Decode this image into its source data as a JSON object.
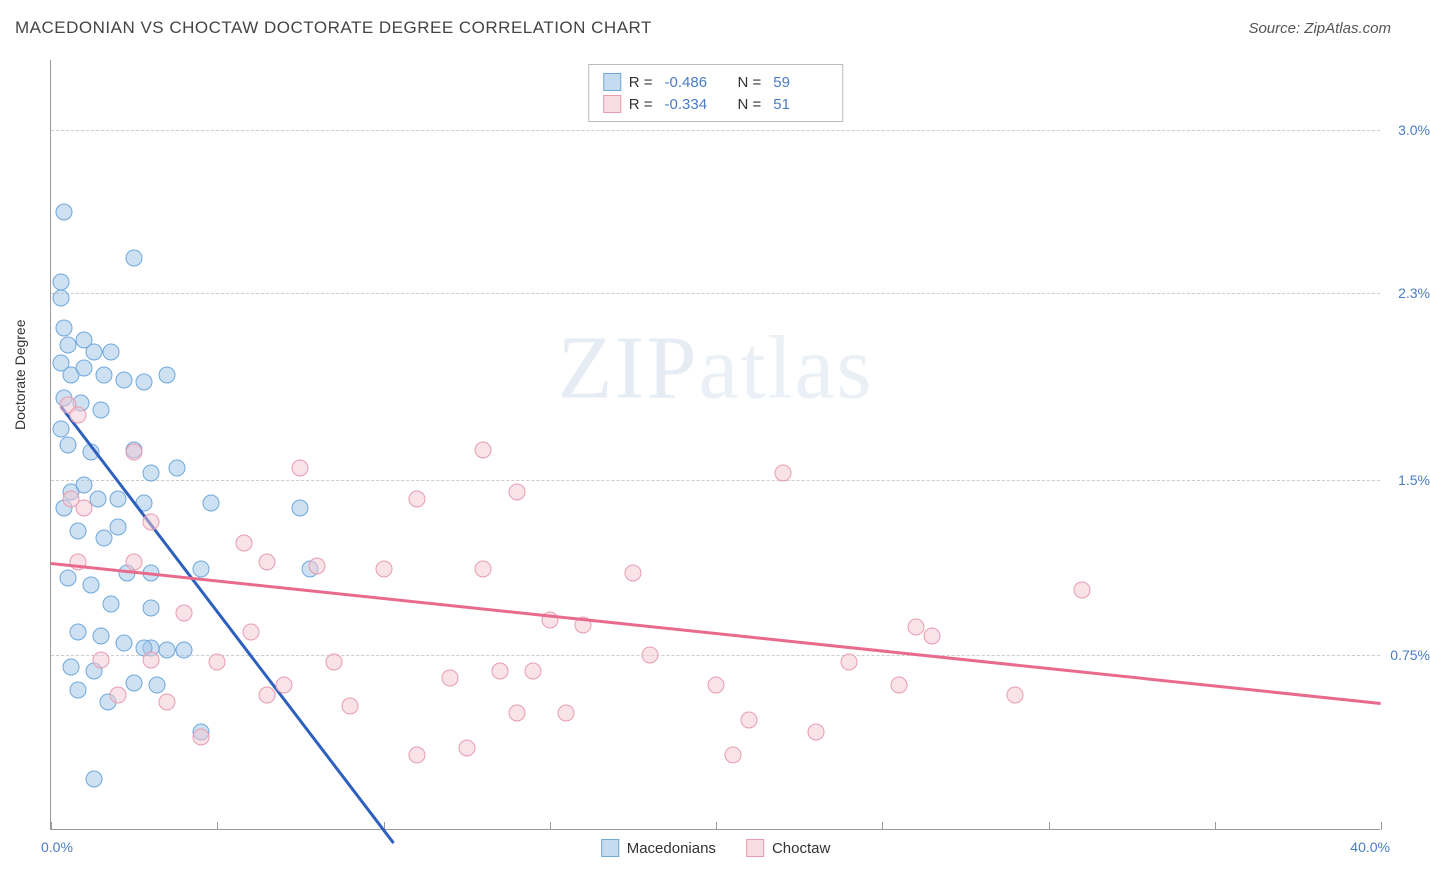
{
  "title": "MACEDONIAN VS CHOCTAW DOCTORATE DEGREE CORRELATION CHART",
  "source": "Source: ZipAtlas.com",
  "ylabel": "Doctorate Degree",
  "watermark": "ZIPatlas",
  "chart": {
    "type": "scatter",
    "xlim": [
      0,
      40
    ],
    "ylim": [
      0,
      3.3
    ],
    "x_min_label": "0.0%",
    "x_max_label": "40.0%",
    "x_ticks": [
      0,
      5,
      10,
      15,
      20,
      25,
      30,
      35,
      40
    ],
    "y_gridlines": [
      {
        "value": 0.75,
        "label": "0.75%"
      },
      {
        "value": 1.5,
        "label": "1.5%"
      },
      {
        "value": 2.3,
        "label": "2.3%"
      },
      {
        "value": 3.0,
        "label": "3.0%"
      }
    ],
    "series": [
      {
        "name": "Macedonians",
        "color_fill": "rgba(157,195,230,0.5)",
        "color_stroke": "#6fa8dc",
        "trend_color": "#2d5fbf",
        "R": "-0.486",
        "N": "59",
        "trend": {
          "x1": 0.3,
          "y1": 1.82,
          "x2": 10.3,
          "y2": -0.05
        },
        "points": [
          [
            0.4,
            2.65
          ],
          [
            2.5,
            2.45
          ],
          [
            0.3,
            2.35
          ],
          [
            0.3,
            2.28
          ],
          [
            0.4,
            2.15
          ],
          [
            0.5,
            2.08
          ],
          [
            1.0,
            2.1
          ],
          [
            1.3,
            2.05
          ],
          [
            1.8,
            2.05
          ],
          [
            0.3,
            2.0
          ],
          [
            0.6,
            1.95
          ],
          [
            1.0,
            1.98
          ],
          [
            1.6,
            1.95
          ],
          [
            2.2,
            1.93
          ],
          [
            2.8,
            1.92
          ],
          [
            3.5,
            1.95
          ],
          [
            0.4,
            1.85
          ],
          [
            0.9,
            1.83
          ],
          [
            1.5,
            1.8
          ],
          [
            0.3,
            1.72
          ],
          [
            0.5,
            1.65
          ],
          [
            1.2,
            1.62
          ],
          [
            2.5,
            1.63
          ],
          [
            3.0,
            1.53
          ],
          [
            3.8,
            1.55
          ],
          [
            0.6,
            1.45
          ],
          [
            1.4,
            1.42
          ],
          [
            2.0,
            1.42
          ],
          [
            2.8,
            1.4
          ],
          [
            4.8,
            1.4
          ],
          [
            7.5,
            1.38
          ],
          [
            0.8,
            1.28
          ],
          [
            1.6,
            1.25
          ],
          [
            2.3,
            1.1
          ],
          [
            3.0,
            1.1
          ],
          [
            4.5,
            1.12
          ],
          [
            7.8,
            1.12
          ],
          [
            0.5,
            1.08
          ],
          [
            1.2,
            1.05
          ],
          [
            1.8,
            0.97
          ],
          [
            3.0,
            0.95
          ],
          [
            0.8,
            0.85
          ],
          [
            1.5,
            0.83
          ],
          [
            2.2,
            0.8
          ],
          [
            3.0,
            0.78
          ],
          [
            4.0,
            0.77
          ],
          [
            0.6,
            0.7
          ],
          [
            1.3,
            0.68
          ],
          [
            2.5,
            0.63
          ],
          [
            3.2,
            0.62
          ],
          [
            0.8,
            0.6
          ],
          [
            1.7,
            0.55
          ],
          [
            4.5,
            0.42
          ],
          [
            1.3,
            0.22
          ],
          [
            2.8,
            0.78
          ],
          [
            3.5,
            0.77
          ],
          [
            2.0,
            1.3
          ],
          [
            1.0,
            1.48
          ],
          [
            0.4,
            1.38
          ]
        ]
      },
      {
        "name": "Choctaw",
        "color_fill": "rgba(244,199,210,0.5)",
        "color_stroke": "#e99bb0",
        "trend_color": "#e86a8c",
        "R": "-0.334",
        "N": "51",
        "trend": {
          "x1": 0,
          "y1": 1.15,
          "x2": 40,
          "y2": 0.55
        },
        "points": [
          [
            0.5,
            1.82
          ],
          [
            0.8,
            1.78
          ],
          [
            2.5,
            1.62
          ],
          [
            7.5,
            1.55
          ],
          [
            13.0,
            1.63
          ],
          [
            0.6,
            1.42
          ],
          [
            1.0,
            1.38
          ],
          [
            3.0,
            1.32
          ],
          [
            11.0,
            1.42
          ],
          [
            14.0,
            1.45
          ],
          [
            22.0,
            1.53
          ],
          [
            0.8,
            1.15
          ],
          [
            2.5,
            1.15
          ],
          [
            5.8,
            1.23
          ],
          [
            6.5,
            1.15
          ],
          [
            8.0,
            1.13
          ],
          [
            10.0,
            1.12
          ],
          [
            13.0,
            1.12
          ],
          [
            17.5,
            1.1
          ],
          [
            31.0,
            1.03
          ],
          [
            4.0,
            0.93
          ],
          [
            6.0,
            0.85
          ],
          [
            15.0,
            0.9
          ],
          [
            16.0,
            0.88
          ],
          [
            26.0,
            0.87
          ],
          [
            26.5,
            0.83
          ],
          [
            1.5,
            0.73
          ],
          [
            3.0,
            0.73
          ],
          [
            5.0,
            0.72
          ],
          [
            8.5,
            0.72
          ],
          [
            12.0,
            0.65
          ],
          [
            13.5,
            0.68
          ],
          [
            14.5,
            0.68
          ],
          [
            20.0,
            0.62
          ],
          [
            25.5,
            0.62
          ],
          [
            29.0,
            0.58
          ],
          [
            2.0,
            0.58
          ],
          [
            3.5,
            0.55
          ],
          [
            6.5,
            0.58
          ],
          [
            9.0,
            0.53
          ],
          [
            14.0,
            0.5
          ],
          [
            15.5,
            0.5
          ],
          [
            21.0,
            0.47
          ],
          [
            23.0,
            0.42
          ],
          [
            4.5,
            0.4
          ],
          [
            11.0,
            0.32
          ],
          [
            12.5,
            0.35
          ],
          [
            20.5,
            0.32
          ],
          [
            7.0,
            0.62
          ],
          [
            18.0,
            0.75
          ],
          [
            24.0,
            0.72
          ]
        ]
      }
    ]
  }
}
